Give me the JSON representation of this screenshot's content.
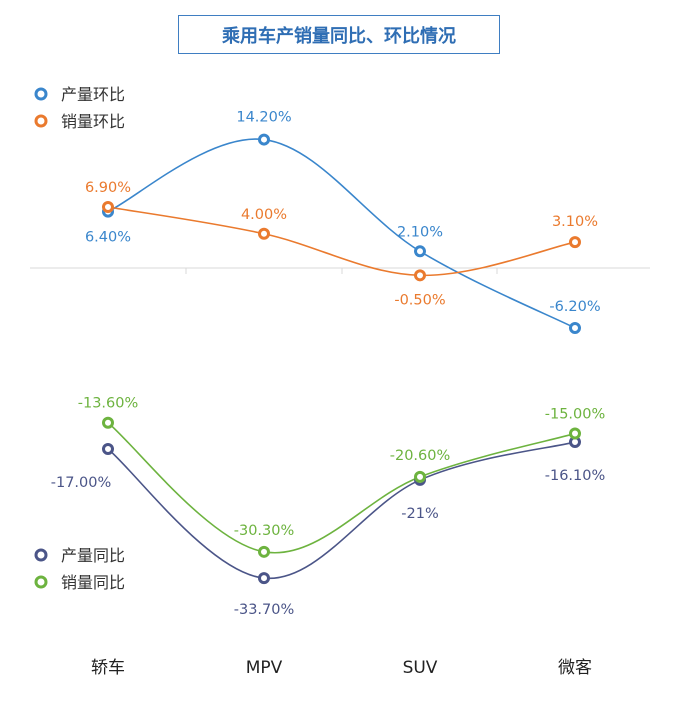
{
  "chart_data": [
    {
      "type": "line",
      "title": "乘用车产销量同比、环比情况",
      "categories": [
        "轿车",
        "MPV",
        "SUV",
        "微客"
      ],
      "series": [
        {
          "name": "产量环比",
          "values": [
            6.4,
            14.2,
            2.1,
            -6.2
          ],
          "labels": [
            "6.40%",
            "14.20%",
            "2.10%",
            "-6.20%"
          ],
          "color": "#3a86cc"
        },
        {
          "name": "销量环比",
          "values": [
            6.9,
            4.0,
            -0.5,
            3.1
          ],
          "labels": [
            "6.90%",
            "4.00%",
            "-0.50%",
            "3.10%"
          ],
          "color": "#ea7a2e"
        }
      ]
    },
    {
      "type": "line",
      "categories": [
        "轿车",
        "MPV",
        "SUV",
        "微客"
      ],
      "series": [
        {
          "name": "产量同比",
          "values": [
            -17.0,
            -33.7,
            -21.0,
            -16.1
          ],
          "labels": [
            "-17.00%",
            "-33.70%",
            "-21%",
            "-16.10%"
          ],
          "color": "#4b5588"
        },
        {
          "name": "销量同比",
          "values": [
            -13.6,
            -30.3,
            -20.6,
            -15.0
          ],
          "labels": [
            "-13.60%",
            "-30.30%",
            "-20.60%",
            "-15.00%"
          ],
          "color": "#6db33f"
        }
      ]
    }
  ]
}
